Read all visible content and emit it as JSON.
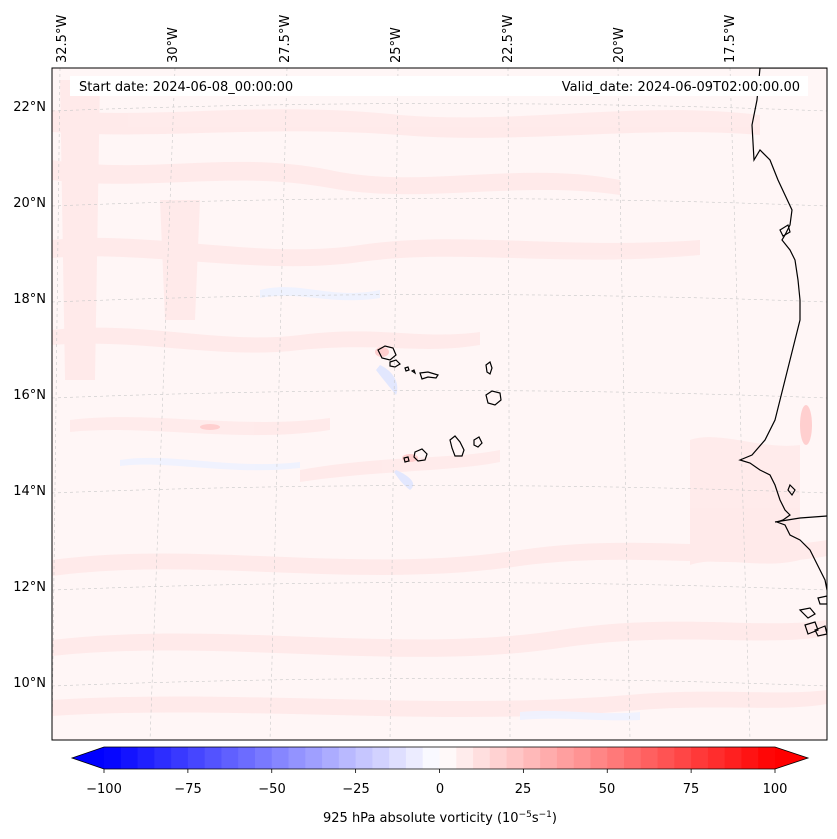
{
  "map": {
    "start_date": "Start date: 2024-06-08_00:00:00",
    "valid_date": "Valid_date: 2024-06-09T02:00:00.00",
    "lon_labels": [
      "32.5°W",
      "30°W",
      "27.5°W",
      "25°W",
      "22.5°W",
      "20°W",
      "17.5°W"
    ],
    "lat_labels": [
      "22°N",
      "20°N",
      "18°N",
      "16°N",
      "14°N",
      "12°N",
      "10°N"
    ]
  },
  "colorbar": {
    "title_prefix": "925 hPa absolute vorticity (10",
    "title_exp1": "−5",
    "title_mid": "s",
    "title_exp2": "−1",
    "title_suffix": ")",
    "tick_labels": [
      "−100",
      "−75",
      "−50",
      "−25",
      "0",
      "25",
      "50",
      "75",
      "100"
    ],
    "vmin": -100,
    "vmax": 100,
    "levels": 40,
    "cmap": "bwr",
    "low_color": "#0000ff",
    "mid_color": "#ffffff",
    "high_color": "#ff0000"
  },
  "colors": {
    "background_field": "#fff6f6",
    "coastline": "#000000",
    "gridline": "#c8c8c8"
  }
}
